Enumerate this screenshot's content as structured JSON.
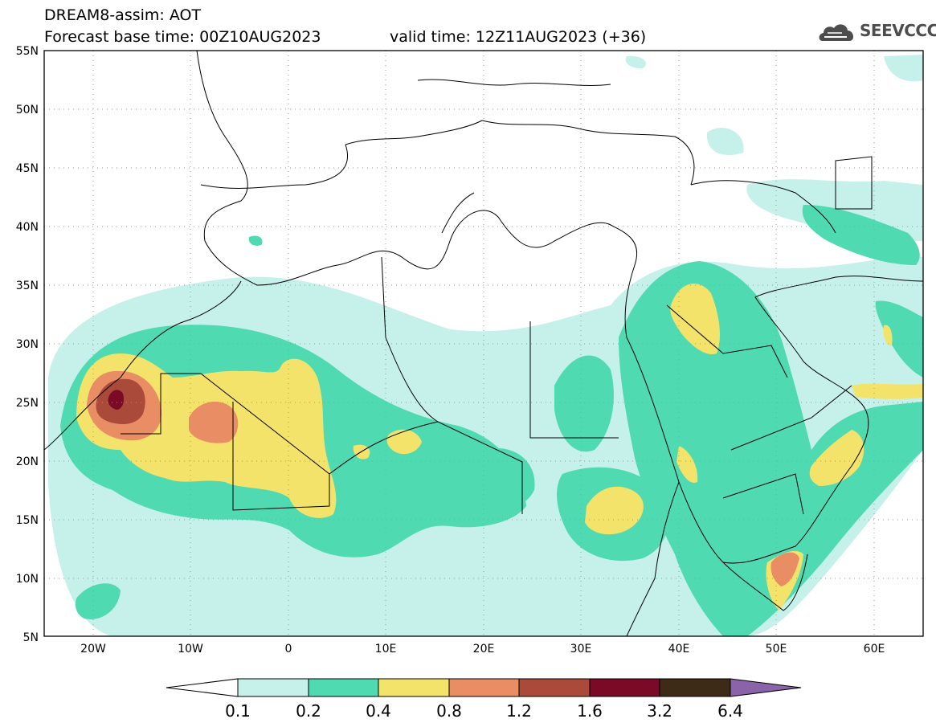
{
  "header": {
    "title_line1": "DREAM8-assim: AOT",
    "title_line2": "Forecast base time: 00Z10AUG2023",
    "valid_time": "valid time: 12Z11AUG2023 (+36)",
    "logo_text": "SEEVCCC"
  },
  "map": {
    "region": "North Africa, Middle East, Southern Europe",
    "variable": "AOT",
    "lon_range": [
      -25,
      65
    ],
    "lat_range": [
      5,
      55
    ],
    "grid": "dotted",
    "lat_labels": [
      "55N",
      "50N",
      "45N",
      "40N",
      "35N",
      "30N",
      "25N",
      "20N",
      "15N",
      "10N",
      "5N"
    ],
    "lon_labels": [
      "20W",
      "10W",
      "0",
      "10E",
      "20E",
      "30E",
      "40E",
      "50E",
      "60E"
    ]
  },
  "colorbar": {
    "labels": [
      "0.1",
      "0.2",
      "0.4",
      "0.8",
      "1.2",
      "1.6",
      "3.2",
      "6.4"
    ],
    "colors": [
      "#ffffff",
      "#c6f0ea",
      "#4fdab2",
      "#f3e36a",
      "#e88d64",
      "#a94a3a",
      "#7a0a26",
      "#3d2a17",
      "#8a63a8"
    ]
  }
}
